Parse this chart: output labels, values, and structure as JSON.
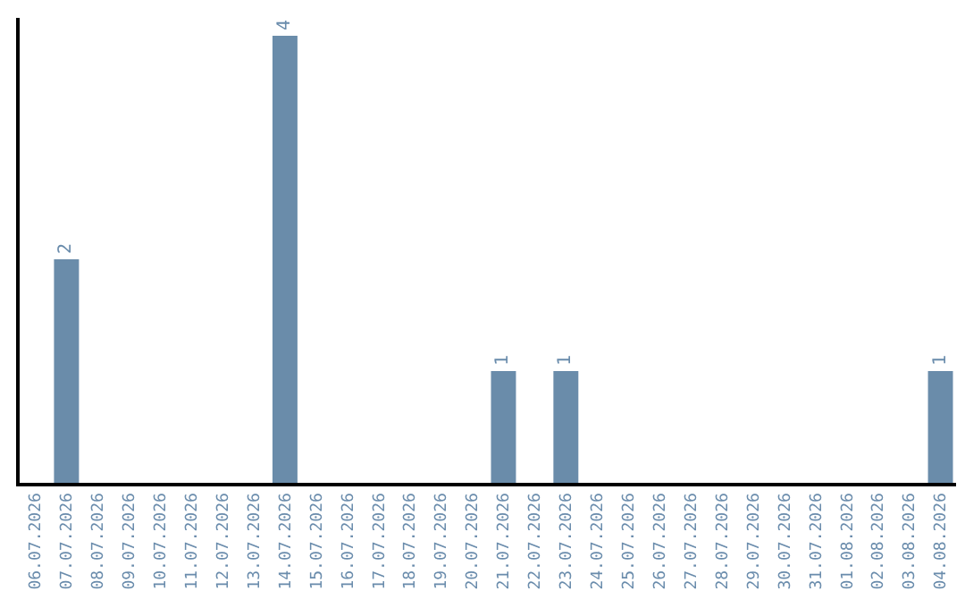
{
  "chart_data": {
    "type": "bar",
    "categories": [
      "06.07.2026",
      "07.07.2026",
      "08.07.2026",
      "09.07.2026",
      "10.07.2026",
      "11.07.2026",
      "12.07.2026",
      "13.07.2026",
      "14.07.2026",
      "15.07.2026",
      "16.07.2026",
      "17.07.2026",
      "18.07.2026",
      "19.07.2026",
      "20.07.2026",
      "21.07.2026",
      "22.07.2026",
      "23.07.2026",
      "24.07.2026",
      "25.07.2026",
      "26.07.2026",
      "27.07.2026",
      "28.07.2026",
      "29.07.2026",
      "30.07.2026",
      "31.07.2026",
      "01.08.2026",
      "02.08.2026",
      "03.08.2026",
      "04.08.2026"
    ],
    "values": [
      0,
      2,
      0,
      0,
      0,
      0,
      0,
      0,
      4,
      0,
      0,
      0,
      0,
      0,
      0,
      1,
      0,
      1,
      0,
      0,
      0,
      0,
      0,
      0,
      0,
      0,
      0,
      0,
      0,
      1
    ],
    "value_labels": [
      null,
      "2",
      null,
      null,
      null,
      null,
      null,
      null,
      "4",
      null,
      null,
      null,
      null,
      null,
      null,
      "1",
      null,
      "1",
      null,
      null,
      null,
      null,
      null,
      null,
      null,
      null,
      null,
      null,
      null,
      "1"
    ],
    "color": "#6a8caa",
    "tick_labels": "x"
  }
}
